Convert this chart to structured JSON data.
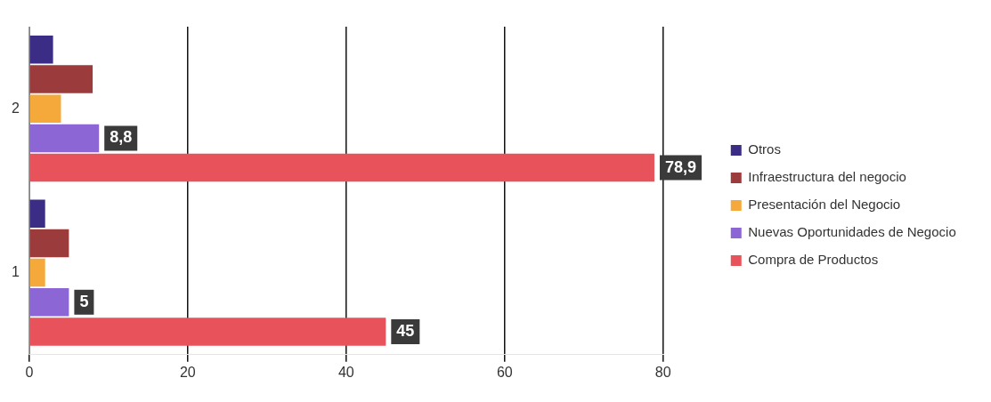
{
  "chart_data": {
    "type": "bar",
    "orientation": "horizontal",
    "categories": [
      "2",
      "1"
    ],
    "series": [
      {
        "name": "Otros",
        "color": "#3b2d86",
        "values": [
          3,
          2
        ]
      },
      {
        "name": "Infraestructura del negocio",
        "color": "#9b3b3b",
        "values": [
          8,
          5
        ]
      },
      {
        "name": "Presentación del Negocio",
        "color": "#f4a93a",
        "values": [
          4,
          2
        ]
      },
      {
        "name": "Nuevas Oportunidades de Negocio",
        "color": "#8d66d6",
        "values": [
          8.8,
          5
        ],
        "value_labels": [
          "8,8",
          "5"
        ]
      },
      {
        "name": "Compra de Productos",
        "color": "#e8535b",
        "values": [
          78.9,
          45
        ],
        "value_labels": [
          "78,9",
          "45"
        ]
      }
    ],
    "xlim": [
      0,
      80
    ],
    "xticks": [
      0,
      20,
      40,
      60,
      80
    ],
    "grid": "x",
    "legend": "right"
  }
}
